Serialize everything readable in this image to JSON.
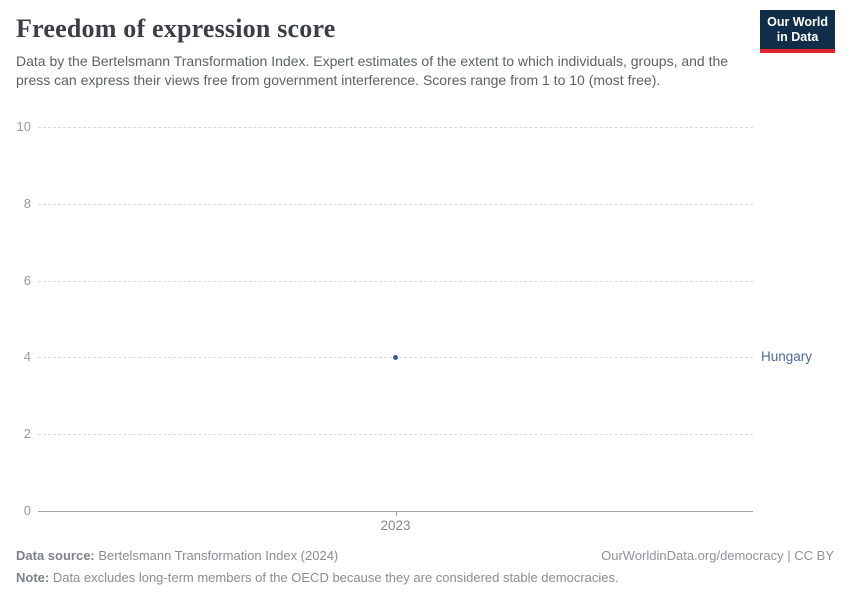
{
  "header": {
    "title": "Freedom of expression score",
    "subtitle": "Data by the Bertelsmann Transformation Index. Expert estimates of the extent to which individuals, groups, and the press can express their views free from government interference. Scores range from 1 to 10 (most free).",
    "logo": {
      "line1": "Our World",
      "line2": "in Data",
      "bg_color": "#102d4a",
      "accent_color": "#e0262c"
    }
  },
  "chart_data": {
    "type": "scatter",
    "title": "Freedom of expression score",
    "series": [
      {
        "name": "Hungary",
        "x": [
          2023
        ],
        "values": [
          4
        ],
        "point_color": "#3d5c94",
        "label_color": "#4c6a9c"
      }
    ],
    "x_ticks": [
      "2023"
    ],
    "y_ticks": [
      0,
      2,
      4,
      6,
      8,
      10
    ],
    "ylim": [
      0,
      10
    ],
    "xlabel": "",
    "ylabel": "",
    "grid": "horizontal-dashed",
    "legend_position": "right-of-point"
  },
  "footer": {
    "source_label": "Data source:",
    "source_text": " Bertelsmann Transformation Index (2024)",
    "origin": "OurWorldinData.org/democracy | CC BY",
    "note_label": "Note:",
    "note_text": " Data excludes long-term members of the OECD because they are considered stable democracies."
  }
}
